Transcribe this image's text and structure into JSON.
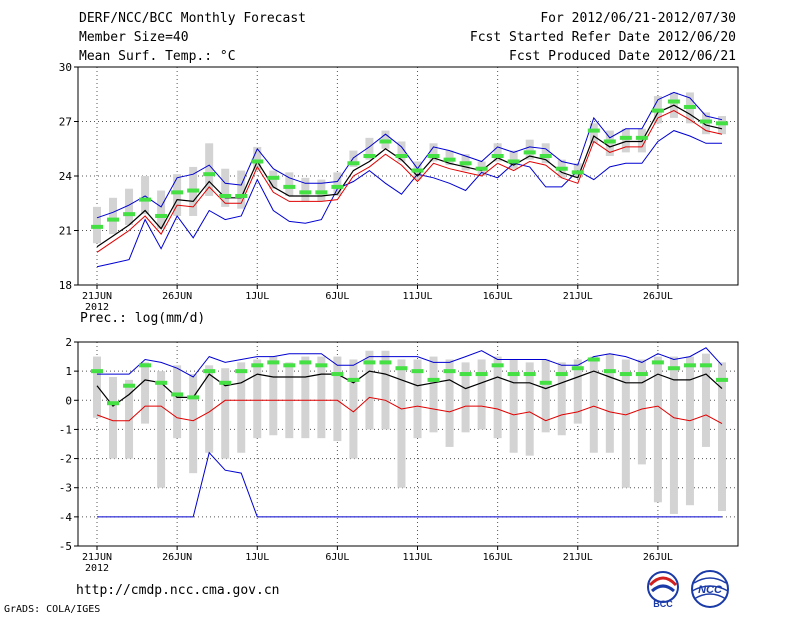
{
  "header": {
    "title": "DERF/NCC/BCC Monthly Forecast",
    "member_size": "Member Size=40",
    "variable": "Mean Surf. Temp.: °C",
    "period": "For 2012/06/21-2012/07/30",
    "refer_date": "Fcst Started Refer Date 2012/06/20",
    "produced_date": "Fcst Produced Date 2012/06/21"
  },
  "footer": {
    "url": "http://cmdp.ncc.cma.gov.cn",
    "credit": "GrADS: COLA/IGES",
    "logo_left_text": "BCC",
    "logo_right_text": "NCC"
  },
  "colors": {
    "box": "#d3d3d3",
    "ensemble_mean": "#000000",
    "median": "#e00000",
    "envelope": "#0000d0",
    "marker": "#44e044"
  },
  "chart_data": [
    {
      "type": "line",
      "name": "temperature",
      "title": "Mean Surf. Temp.: °C",
      "ylim": [
        18,
        30
      ],
      "yticks": [
        18,
        21,
        24,
        27,
        30
      ],
      "x_count": 40,
      "xticks": [
        {
          "index": 0,
          "label": "21JUN",
          "sublabel": "2012"
        },
        {
          "index": 5,
          "label": "26JUN"
        },
        {
          "index": 10,
          "label": "1JUL"
        },
        {
          "index": 15,
          "label": "6JUL"
        },
        {
          "index": 20,
          "label": "11JUL"
        },
        {
          "index": 25,
          "label": "16JUL"
        },
        {
          "index": 30,
          "label": "21JUL"
        },
        {
          "index": 35,
          "label": "26JUL"
        }
      ],
      "grid": true,
      "series": {
        "box_low": [
          20.3,
          20.8,
          21.3,
          21.9,
          21.1,
          21.8,
          21.8,
          22.9,
          22.3,
          22.2,
          24.3,
          23.3,
          22.9,
          22.6,
          22.6,
          22.9,
          24.5,
          24.9,
          25.5,
          24.8,
          23.8,
          24.8,
          24.6,
          24.3,
          24.0,
          24.8,
          24.4,
          24.9,
          24.7,
          23.9,
          23.9,
          25.8,
          25.1,
          25.3,
          25.3,
          26.9,
          27.2,
          26.9,
          26.3,
          26.3
        ],
        "box_high": [
          22.3,
          22.8,
          23.3,
          24.0,
          23.2,
          24.1,
          24.5,
          25.8,
          24.4,
          24.3,
          25.6,
          24.3,
          24.2,
          23.9,
          23.8,
          24.2,
          25.4,
          26.1,
          26.5,
          25.9,
          24.8,
          25.8,
          25.4,
          25.2,
          24.8,
          25.8,
          25.4,
          26.0,
          25.8,
          24.9,
          24.7,
          26.9,
          26.5,
          26.6,
          26.6,
          28.4,
          28.6,
          28.6,
          27.5,
          27.3
        ],
        "mean": [
          20.1,
          20.7,
          21.3,
          22.1,
          21.1,
          22.7,
          22.6,
          23.7,
          22.8,
          22.8,
          24.8,
          23.4,
          22.9,
          22.9,
          22.9,
          23.0,
          24.3,
          24.8,
          25.5,
          24.9,
          24.0,
          25.0,
          24.7,
          24.5,
          24.3,
          25.0,
          24.6,
          25.1,
          24.9,
          24.2,
          23.9,
          26.2,
          25.6,
          25.9,
          25.9,
          27.5,
          27.9,
          27.4,
          26.8,
          26.6
        ],
        "median": [
          19.8,
          20.4,
          21.0,
          21.8,
          20.8,
          22.4,
          22.3,
          23.4,
          22.5,
          22.5,
          24.5,
          23.1,
          22.6,
          22.6,
          22.6,
          22.7,
          24.0,
          24.5,
          25.2,
          24.6,
          23.7,
          24.7,
          24.4,
          24.2,
          24.0,
          24.7,
          24.3,
          24.8,
          24.6,
          23.9,
          23.6,
          25.9,
          25.3,
          25.6,
          25.6,
          27.2,
          27.6,
          27.1,
          26.5,
          26.3
        ],
        "max": [
          21.7,
          22.0,
          22.4,
          22.9,
          22.3,
          23.9,
          24.1,
          24.6,
          23.6,
          23.5,
          25.5,
          24.4,
          23.9,
          23.6,
          23.6,
          23.7,
          25.0,
          25.6,
          26.3,
          25.6,
          24.4,
          25.6,
          25.4,
          25.1,
          24.8,
          25.6,
          25.3,
          25.6,
          25.5,
          24.8,
          24.6,
          27.2,
          26.1,
          26.6,
          26.6,
          28.2,
          28.6,
          28.3,
          27.3,
          27.1
        ],
        "min": [
          19.0,
          19.2,
          19.4,
          21.6,
          20.0,
          21.8,
          20.6,
          22.1,
          21.6,
          21.8,
          23.8,
          22.1,
          21.5,
          21.4,
          21.6,
          23.3,
          23.7,
          24.3,
          23.6,
          23.0,
          24.1,
          23.9,
          23.6,
          23.2,
          24.2,
          23.9,
          24.7,
          24.5,
          23.4,
          23.4,
          24.3,
          23.8,
          24.5,
          24.7,
          24.7,
          25.9,
          26.5,
          26.2,
          25.8,
          25.8
        ],
        "marker": [
          21.2,
          21.6,
          21.9,
          22.7,
          21.8,
          23.1,
          23.2,
          24.1,
          22.9,
          22.9,
          24.8,
          23.9,
          23.4,
          23.1,
          23.1,
          23.4,
          24.7,
          25.1,
          25.9,
          25.1,
          24.3,
          25.1,
          24.9,
          24.7,
          24.4,
          25.1,
          24.8,
          25.3,
          25.1,
          24.4,
          24.2,
          26.5,
          25.9,
          26.1,
          26.1,
          27.6,
          28.1,
          27.8,
          27.0,
          26.9
        ]
      }
    },
    {
      "type": "line",
      "name": "precipitation",
      "title": "Prec.: log(mm/d)",
      "ylim": [
        -5,
        2
      ],
      "yticks": [
        -5,
        -4,
        -3,
        -2,
        -1,
        0,
        1,
        2
      ],
      "x_count": 40,
      "xticks": [
        {
          "index": 0,
          "label": "21JUN",
          "sublabel": "2012"
        },
        {
          "index": 5,
          "label": "26JUN"
        },
        {
          "index": 10,
          "label": "1JUL"
        },
        {
          "index": 15,
          "label": "6JUL"
        },
        {
          "index": 20,
          "label": "11JUL"
        },
        {
          "index": 25,
          "label": "16JUL"
        },
        {
          "index": 30,
          "label": "21JUL"
        },
        {
          "index": 35,
          "label": "26JUL"
        }
      ],
      "grid": true,
      "series": {
        "box_low": [
          -0.6,
          -2.0,
          -2.0,
          -0.8,
          -3.0,
          -1.3,
          -2.5,
          -1.8,
          -2.0,
          -1.8,
          -1.3,
          -1.2,
          -1.3,
          -1.3,
          -1.3,
          -1.4,
          -2.0,
          -1.0,
          -1.0,
          -3.0,
          -1.3,
          -1.1,
          -1.6,
          -1.1,
          -1.0,
          -1.3,
          -1.8,
          -1.9,
          -1.1,
          -1.2,
          -0.8,
          -1.8,
          -1.8,
          -3.0,
          -2.2,
          -3.5,
          -3.9,
          -3.6,
          -1.6,
          -3.8
        ],
        "box_high": [
          1.5,
          0.8,
          0.7,
          1.3,
          1.0,
          1.2,
          0.9,
          1.2,
          1.1,
          1.3,
          1.4,
          1.5,
          1.3,
          1.5,
          1.5,
          1.5,
          1.4,
          1.7,
          1.7,
          1.4,
          1.4,
          1.5,
          1.4,
          1.3,
          1.4,
          1.5,
          1.4,
          1.3,
          1.4,
          1.3,
          1.4,
          1.5,
          1.6,
          1.4,
          1.4,
          1.5,
          1.5,
          1.5,
          1.6,
          1.3
        ],
        "mean": [
          0.5,
          -0.2,
          0.2,
          0.7,
          0.6,
          0.1,
          0.1,
          0.9,
          0.5,
          0.6,
          0.9,
          0.8,
          0.8,
          0.8,
          0.9,
          0.9,
          0.6,
          1.0,
          0.9,
          0.7,
          0.5,
          0.6,
          0.7,
          0.4,
          0.6,
          0.8,
          0.6,
          0.6,
          0.4,
          0.6,
          0.8,
          1.0,
          0.8,
          0.6,
          0.6,
          0.9,
          0.7,
          0.7,
          0.9,
          0.4
        ],
        "median": [
          -0.5,
          -0.7,
          -0.7,
          -0.2,
          -0.2,
          -0.6,
          -0.7,
          -0.4,
          0.0,
          0.0,
          0.0,
          0.0,
          0.0,
          0.0,
          0.0,
          0.0,
          -0.4,
          0.1,
          0.0,
          -0.3,
          -0.2,
          -0.3,
          -0.4,
          -0.2,
          -0.2,
          -0.3,
          -0.5,
          -0.4,
          -0.7,
          -0.5,
          -0.4,
          -0.2,
          -0.4,
          -0.5,
          -0.3,
          -0.2,
          -0.6,
          -0.7,
          -0.5,
          -0.8
        ],
        "max": [
          0.9,
          0.9,
          0.9,
          1.4,
          1.3,
          1.1,
          0.8,
          1.5,
          1.3,
          1.4,
          1.5,
          1.5,
          1.6,
          1.6,
          1.6,
          1.2,
          1.2,
          1.5,
          1.5,
          1.5,
          1.5,
          1.3,
          1.3,
          1.5,
          1.7,
          1.4,
          1.4,
          1.4,
          1.4,
          1.2,
          1.2,
          1.5,
          1.6,
          1.5,
          1.3,
          1.6,
          1.4,
          1.5,
          1.8,
          1.2
        ],
        "min": [
          -4,
          -4,
          -4,
          -4,
          -4,
          -4,
          -4,
          -1.8,
          -2.4,
          -2.5,
          -4,
          -4,
          -4,
          -4,
          -4,
          -4,
          -4,
          -4,
          -4,
          -4,
          -4,
          -4,
          -4,
          -4,
          -4,
          -4,
          -4,
          -4,
          -4,
          -4,
          -4,
          -4,
          -4,
          -4,
          -4,
          -4,
          -4,
          -4,
          -4,
          -4
        ],
        "marker": [
          1.0,
          -0.1,
          0.5,
          1.2,
          0.6,
          0.2,
          0.1,
          1.0,
          0.6,
          1.0,
          1.2,
          1.3,
          1.2,
          1.3,
          1.2,
          0.9,
          0.7,
          1.3,
          1.3,
          1.1,
          1.0,
          0.7,
          1.0,
          0.9,
          0.9,
          1.2,
          0.9,
          0.9,
          0.6,
          0.9,
          1.1,
          1.4,
          1.0,
          0.9,
          0.9,
          1.3,
          1.1,
          1.2,
          1.2,
          0.7
        ]
      }
    }
  ]
}
